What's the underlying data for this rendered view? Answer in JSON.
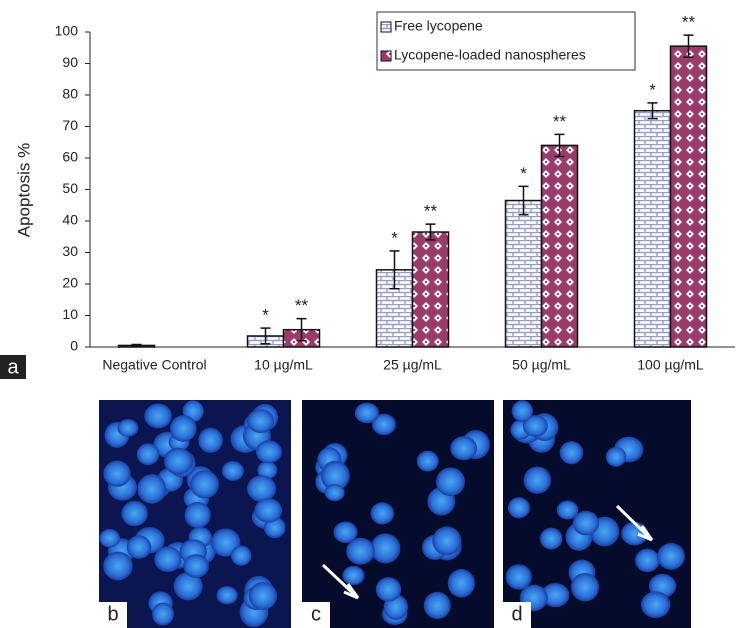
{
  "chart_data": {
    "type": "bar",
    "ylabel": "Apoptosis %",
    "categories": [
      "Negative Control",
      "10 µg/mL",
      "25 µg/mL",
      "50 µg/mL",
      "100 µg/mL"
    ],
    "series": [
      {
        "name": "Free lycopene",
        "color": "#8a8ec0",
        "values": [
          0.5,
          3.5,
          24.5,
          46.5,
          75
        ],
        "errors": [
          0.3,
          2.5,
          6,
          4.5,
          2.5
        ],
        "annotations": [
          null,
          "*",
          "*",
          "*",
          "*"
        ]
      },
      {
        "name": "Lycopene-loaded nanospheres",
        "color": "#9b3b6b",
        "values": [
          null,
          5.5,
          36.5,
          64,
          95.5
        ],
        "errors": [
          null,
          3.5,
          2.5,
          3.5,
          3.5
        ],
        "annotations": [
          null,
          "**",
          "**",
          "**",
          "**"
        ]
      }
    ],
    "ylim": [
      0,
      100
    ],
    "yticks": [
      0,
      10,
      20,
      30,
      40,
      50,
      60,
      70,
      80,
      90,
      100
    ],
    "grid": false,
    "legend": "top-right"
  },
  "panels": [
    "a",
    "b",
    "c",
    "d"
  ]
}
